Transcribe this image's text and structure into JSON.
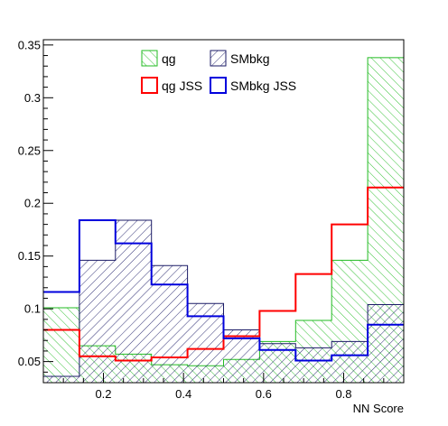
{
  "chart_data": {
    "type": "histogram",
    "title": "",
    "xlabel": "NN Score",
    "ylabel": "",
    "xlim": [
      0.05,
      0.95
    ],
    "ylim": [
      0.03,
      0.355
    ],
    "grid": false,
    "legend_placement": "top-center",
    "bin_edges": [
      0.05,
      0.14,
      0.23,
      0.32,
      0.41,
      0.5,
      0.59,
      0.68,
      0.77,
      0.86,
      0.95
    ],
    "x_ticks": [
      0.2,
      0.4,
      0.6,
      0.8
    ],
    "x_tick_labels": [
      "0.2",
      "0.4",
      "0.6",
      "0.8"
    ],
    "y_ticks": [
      0.05,
      0.1,
      0.15,
      0.2,
      0.25,
      0.3,
      0.35
    ],
    "y_tick_labels": [
      "0.05",
      "0.1",
      "0.15",
      "0.2",
      "0.25",
      "0.3",
      "0.35"
    ],
    "series": [
      {
        "name": "qg",
        "style": "hatch-green",
        "color": "#22bb22",
        "values": [
          0.101,
          0.065,
          0.057,
          0.047,
          0.046,
          0.052,
          0.069,
          0.089,
          0.146,
          0.338
        ]
      },
      {
        "name": "SMbkg",
        "style": "hatch-navy",
        "color": "#1a1a66",
        "values": [
          0.036,
          0.146,
          0.184,
          0.141,
          0.105,
          0.08,
          0.067,
          0.063,
          0.069,
          0.104
        ]
      },
      {
        "name": "qg JSS",
        "style": "line",
        "color": "#ff0000",
        "values": [
          0.08,
          0.055,
          0.051,
          0.054,
          0.062,
          0.074,
          0.098,
          0.133,
          0.18,
          0.215
        ]
      },
      {
        "name": "SMbkg JSS",
        "style": "line",
        "color": "#0000dd",
        "values": [
          0.116,
          0.184,
          0.162,
          0.123,
          0.093,
          0.072,
          0.061,
          0.051,
          0.056,
          0.085
        ]
      }
    ]
  }
}
